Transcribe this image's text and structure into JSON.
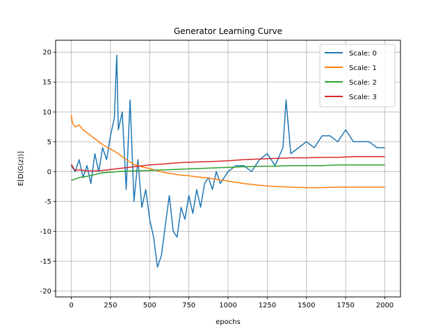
{
  "chart_data": {
    "type": "line",
    "title": "Generator Learning Curve",
    "xlabel": "epochs",
    "ylabel": "E[D(G(z))]",
    "xlim": [
      -100,
      2100
    ],
    "ylim": [
      -21,
      22
    ],
    "grid": true,
    "legend_position": "top-right",
    "x_ticks": [
      0,
      250,
      500,
      750,
      1000,
      1250,
      1500,
      1750,
      2000
    ],
    "y_ticks": [
      -20,
      -15,
      -10,
      -5,
      0,
      5,
      10,
      15,
      20
    ],
    "series": [
      {
        "name": "Scale: 0",
        "color": "#1f77b4",
        "x": [
          0,
          25,
          50,
          75,
          100,
          125,
          150,
          175,
          200,
          225,
          250,
          275,
          290,
          300,
          325,
          350,
          375,
          400,
          425,
          450,
          475,
          500,
          525,
          550,
          575,
          600,
          625,
          650,
          675,
          700,
          725,
          750,
          775,
          800,
          825,
          850,
          875,
          900,
          925,
          950,
          975,
          1000,
          1050,
          1100,
          1150,
          1200,
          1250,
          1300,
          1350,
          1370,
          1400,
          1450,
          1500,
          1550,
          1600,
          1650,
          1700,
          1750,
          1800,
          1850,
          1900,
          1950,
          2000
        ],
        "y": [
          1,
          0,
          2,
          -1,
          1,
          -2,
          3,
          0,
          4,
          2,
          6,
          9,
          19.5,
          7,
          10,
          -3,
          12,
          -5,
          2,
          -6,
          -3,
          -8,
          -11,
          -16,
          -14,
          -9,
          -4,
          -10,
          -11,
          -6,
          -8,
          -4,
          -7,
          -3,
          -6,
          -2,
          -1,
          -3,
          0,
          -2,
          -1,
          0,
          1,
          1,
          0,
          2,
          3,
          1,
          4,
          12,
          3,
          4,
          5,
          4,
          6,
          6,
          5,
          7,
          5,
          5,
          5,
          4,
          4
        ]
      },
      {
        "name": "Scale: 1",
        "color": "#ff7f0e",
        "x": [
          0,
          5,
          10,
          25,
          50,
          75,
          100,
          150,
          200,
          250,
          300,
          350,
          400,
          450,
          500,
          550,
          600,
          650,
          700,
          750,
          800,
          850,
          900,
          950,
          1000,
          1100,
          1200,
          1300,
          1400,
          1500,
          1600,
          1700,
          1800,
          1900,
          2000
        ],
        "y": [
          9.5,
          8.5,
          8,
          7.5,
          7.8,
          7,
          6.5,
          5.5,
          4.5,
          3.8,
          3,
          2,
          1.2,
          0.8,
          0.5,
          0.1,
          -0.2,
          -0.4,
          -0.6,
          -0.7,
          -0.9,
          -1,
          -1.2,
          -1.4,
          -1.6,
          -2,
          -2.3,
          -2.5,
          -2.6,
          -2.7,
          -2.7,
          -2.6,
          -2.6,
          -2.6,
          -2.6
        ]
      },
      {
        "name": "Scale: 2",
        "color": "#2ca02c",
        "x": [
          0,
          50,
          100,
          150,
          200,
          300,
          400,
          500,
          600,
          700,
          800,
          900,
          1000,
          1100,
          1200,
          1300,
          1400,
          1500,
          1600,
          1700,
          1800,
          1900,
          2000
        ],
        "y": [
          -1.5,
          -1,
          -0.8,
          -0.5,
          -0.2,
          0,
          0.1,
          0.2,
          0.3,
          0.4,
          0.5,
          0.6,
          0.7,
          0.8,
          0.9,
          0.9,
          1,
          1,
          1,
          1.1,
          1.1,
          1.1,
          1.1
        ]
      },
      {
        "name": "Scale: 3",
        "color": "#d62728",
        "x": [
          0,
          10,
          20,
          30,
          50,
          100,
          150,
          200,
          300,
          400,
          500,
          600,
          700,
          800,
          900,
          1000,
          1100,
          1200,
          1300,
          1400,
          1500,
          1600,
          1700,
          1800,
          1900,
          2000
        ],
        "y": [
          1.2,
          0.8,
          0.3,
          0.2,
          0.3,
          0.1,
          0.1,
          0.2,
          0.5,
          0.8,
          1.1,
          1.3,
          1.5,
          1.6,
          1.7,
          1.8,
          2,
          2.1,
          2.2,
          2.3,
          2.3,
          2.4,
          2.4,
          2.5,
          2.5,
          2.5
        ]
      }
    ]
  }
}
